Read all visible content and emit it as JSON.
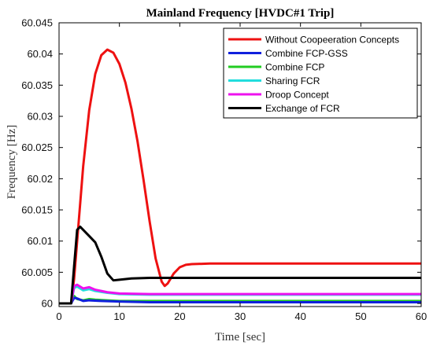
{
  "chart_data": {
    "type": "line",
    "title": "Mainland Frequency [HVDC#1 Trip]",
    "xlabel": "Time [sec]",
    "ylabel": "Frequency [Hz]",
    "xlim": [
      0,
      60
    ],
    "ylim": [
      59.9995,
      60.045
    ],
    "xticks": [
      0,
      10,
      20,
      30,
      40,
      50,
      60
    ],
    "xtick_labels": [
      "0",
      "10",
      "20",
      "30",
      "40",
      "50",
      "60"
    ],
    "yticks": [
      60,
      60.005,
      60.01,
      60.015,
      60.02,
      60.025,
      60.03,
      60.035,
      60.04,
      60.045
    ],
    "ytick_labels": [
      "60",
      "60.005",
      "60.01",
      "60.015",
      "60.02",
      "60.025",
      "60.03",
      "60.035",
      "60.04",
      "60.045"
    ],
    "grid": false,
    "legend_position": "top-right",
    "series": [
      {
        "name": "Without Coopeeration Concepts",
        "color": "#ee1111",
        "x": [
          0,
          2,
          2.5,
          3,
          4,
          5,
          6,
          7,
          8,
          9,
          10,
          11,
          12,
          13,
          14,
          15,
          16,
          17,
          17.5,
          18,
          19,
          20,
          21,
          22,
          25,
          30,
          60
        ],
        "y": [
          60,
          60,
          60.004,
          60.01,
          60.022,
          60.031,
          60.0368,
          60.0398,
          60.0407,
          60.0402,
          60.0384,
          60.0354,
          60.0312,
          60.026,
          60.0198,
          60.0132,
          60.0072,
          60.0035,
          60.0028,
          60.0032,
          60.0048,
          60.0058,
          60.0062,
          60.0063,
          60.0064,
          60.0064,
          60.0064
        ]
      },
      {
        "name": "Combine FCP-GSS",
        "color": "#1020dd",
        "x": [
          0,
          2,
          2.5,
          3,
          4,
          5,
          7,
          10,
          15,
          60
        ],
        "y": [
          60,
          60,
          60.0009,
          60.0008,
          60.0004,
          60.0005,
          60.0004,
          60.0003,
          60.0002,
          60.0002
        ]
      },
      {
        "name": "Combine FCP",
        "color": "#22cc22",
        "x": [
          0,
          2,
          2.5,
          3,
          4,
          5,
          6,
          8,
          10,
          15,
          60
        ],
        "y": [
          60,
          60,
          60.0012,
          60.0007,
          60.0005,
          60.0007,
          60.0006,
          60.0005,
          60.0004,
          60.0004,
          60.0004
        ]
      },
      {
        "name": "Sharing FCR",
        "color": "#22dddd",
        "x": [
          0,
          2,
          2.5,
          3,
          4,
          5,
          6,
          8,
          10,
          15,
          60
        ],
        "y": [
          60,
          60,
          60.0025,
          60.0027,
          60.0021,
          60.0023,
          60.002,
          60.0017,
          60.0015,
          60.0014,
          60.0014
        ]
      },
      {
        "name": "Droop Concept",
        "color": "#ee11ee",
        "x": [
          0,
          2,
          2.5,
          3,
          4,
          5,
          6,
          8,
          10,
          15,
          60
        ],
        "y": [
          60,
          60,
          60.0028,
          60.003,
          60.0024,
          60.0026,
          60.0022,
          60.0018,
          60.0016,
          60.0015,
          60.0015
        ]
      },
      {
        "name": "Exchange of FCR",
        "color": "#000000",
        "x": [
          0,
          2,
          2.5,
          3,
          3.5,
          4,
          5,
          6,
          7,
          8,
          9,
          10,
          12,
          15,
          20,
          60
        ],
        "y": [
          60,
          60,
          60.006,
          60.0118,
          60.0123,
          60.0118,
          60.0108,
          60.0098,
          60.0075,
          60.0048,
          60.0037,
          60.0038,
          60.004,
          60.0041,
          60.0041,
          60.0041
        ]
      }
    ]
  }
}
